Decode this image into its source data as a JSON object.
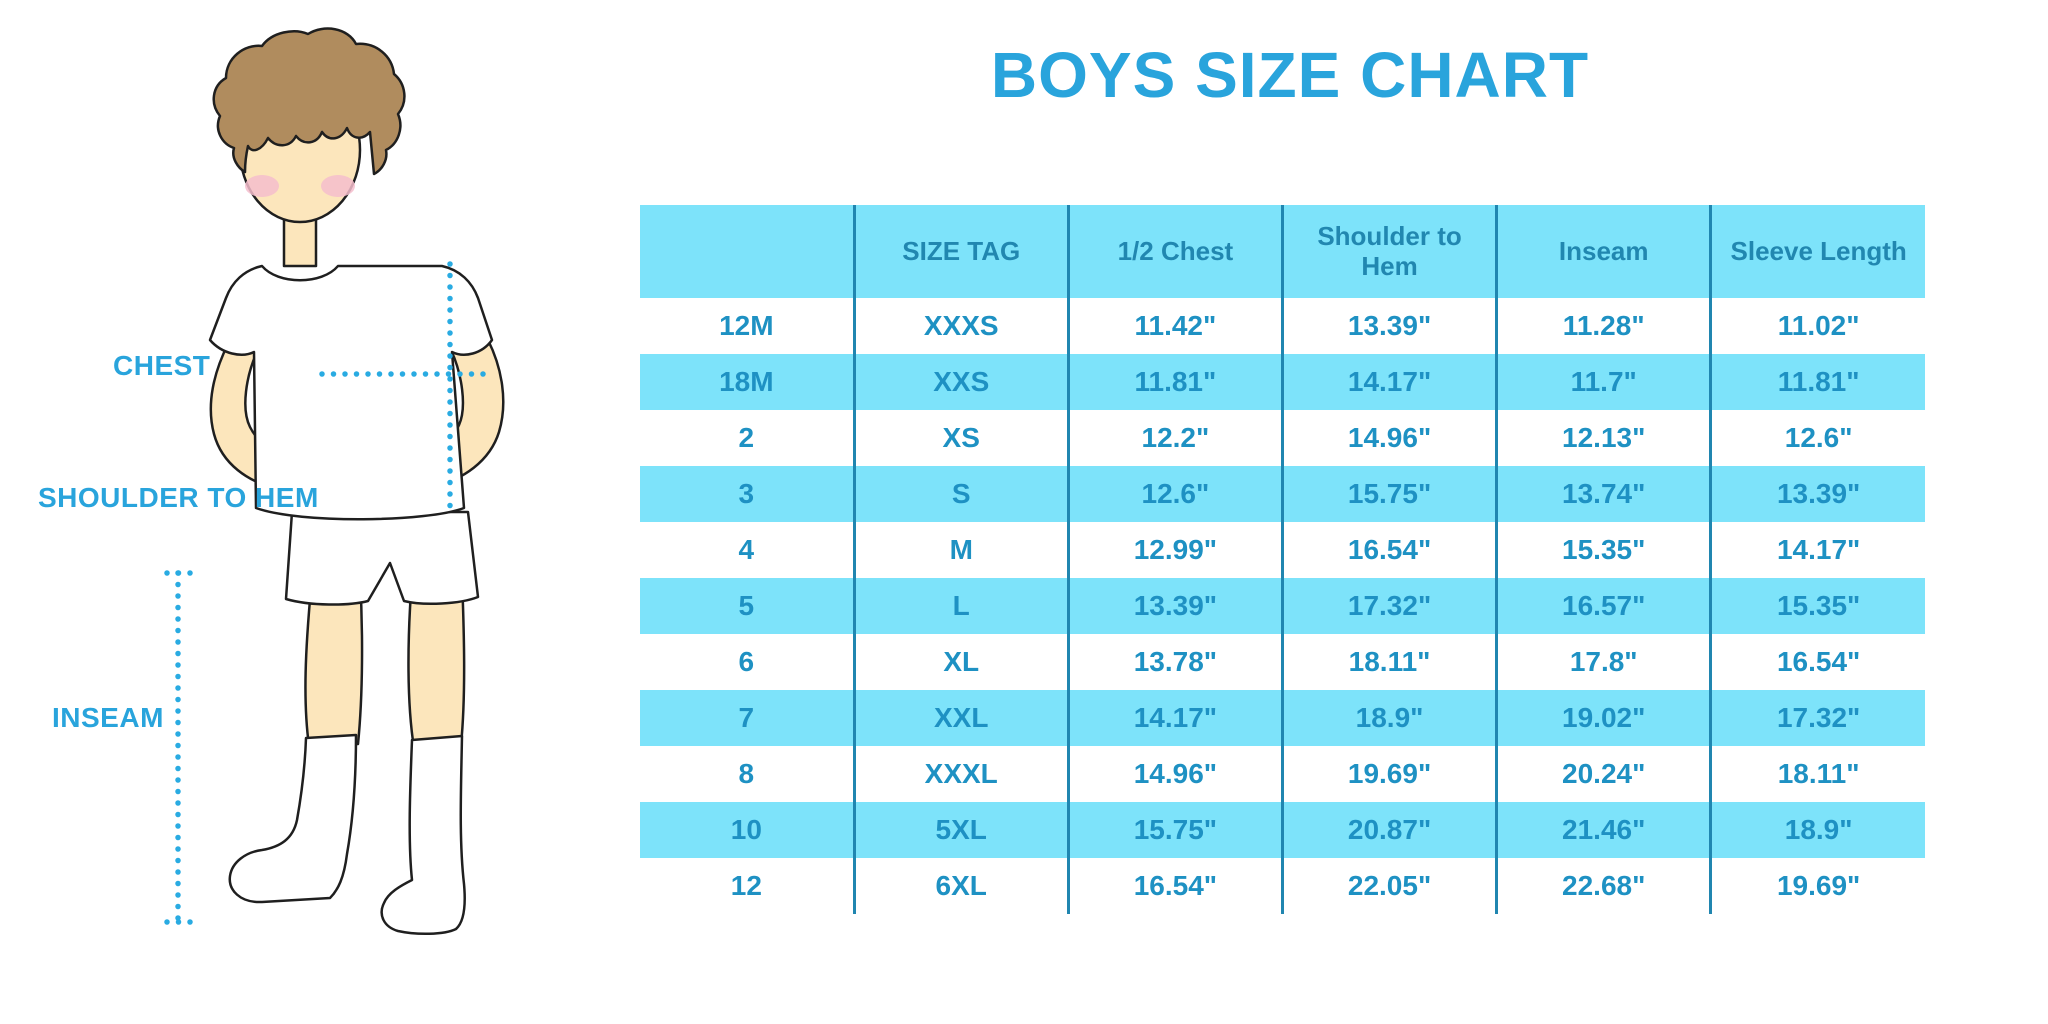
{
  "title": "BOYS SIZE CHART",
  "illustration": {
    "labels": {
      "chest": "CHEST",
      "shoulder_to_hem": "SHOULDER TO HEM",
      "inseam": "INSEAM"
    }
  },
  "table": {
    "columns": [
      "",
      "SIZE TAG",
      "1/2 Chest",
      "Shoulder to Hem",
      "Inseam",
      "Sleeve Length"
    ],
    "rows": [
      [
        "12M",
        "XXXS",
        "11.42\"",
        "13.39\"",
        "11.28\"",
        "11.02\""
      ],
      [
        "18M",
        "XXS",
        "11.81\"",
        "14.17\"",
        "11.7\"",
        "11.81\""
      ],
      [
        "2",
        "XS",
        "12.2\"",
        "14.96\"",
        "12.13\"",
        "12.6\""
      ],
      [
        "3",
        "S",
        "12.6\"",
        "15.75\"",
        "13.74\"",
        "13.39\""
      ],
      [
        "4",
        "M",
        "12.99\"",
        "16.54\"",
        "15.35\"",
        "14.17\""
      ],
      [
        "5",
        "L",
        "13.39\"",
        "17.32\"",
        "16.57\"",
        "15.35\""
      ],
      [
        "6",
        "XL",
        "13.78\"",
        "18.11\"",
        "17.8\"",
        "16.54\""
      ],
      [
        "7",
        "XXL",
        "14.17\"",
        "18.9\"",
        "19.02\"",
        "17.32\""
      ],
      [
        "8",
        "XXXL",
        "14.96\"",
        "19.69\"",
        "20.24\"",
        "18.11\""
      ],
      [
        "10",
        "5XL",
        "15.75\"",
        "20.87\"",
        "21.46\"",
        "18.9\""
      ],
      [
        "12",
        "6XL",
        "16.54\"",
        "22.05\"",
        "22.68\"",
        "19.69\""
      ]
    ]
  },
  "colors": {
    "accent": "#29A4DC",
    "cellbg": "#7DE3FA",
    "border": "#2086B0",
    "headtext": "#2187B0",
    "bodytext": "#1E91C3",
    "skin": "#FCE6BC",
    "hair": "#B08C5E",
    "blush": "#F5BDCD",
    "outline": "#1F1F1F",
    "dotline": "#29ABE2"
  }
}
